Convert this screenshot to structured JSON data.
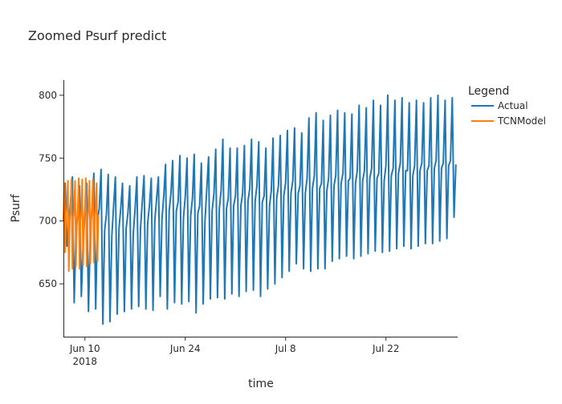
{
  "chart_data": {
    "type": "line",
    "title": "Zoomed Psurf predict",
    "xlabel": "time",
    "ylabel": "Psurf",
    "x_range": [
      "2018-06-07",
      "2018-08-01"
    ],
    "ylim": [
      608,
      812
    ],
    "grid": false,
    "legend": {
      "title": "Legend",
      "placement": "top-right-outside"
    },
    "x_ticks": [
      {
        "date": "2018-06-10",
        "label": "Jun 10",
        "sublabel": "2018"
      },
      {
        "date": "2018-06-24",
        "label": "Jun 24",
        "sublabel": ""
      },
      {
        "date": "2018-07-08",
        "label": "Jul 8",
        "sublabel": ""
      },
      {
        "date": "2018-07-22",
        "label": "Jul 22",
        "sublabel": ""
      }
    ],
    "y_ticks": [
      650,
      700,
      750,
      800
    ],
    "series": [
      {
        "name": "Actual",
        "color": "#1f77b4",
        "start": "2018-06-07",
        "end": "2018-08-01",
        "cycle_days": 1,
        "cycle_samples": 4,
        "daily_cycles": [
          [
            700,
            730,
            680,
            698
          ],
          [
            715,
            735,
            635,
            690
          ],
          [
            705,
            728,
            640,
            680
          ],
          [
            708,
            730,
            628,
            690
          ],
          [
            712,
            738,
            630,
            700
          ],
          [
            710,
            741,
            618,
            692
          ],
          [
            706,
            737,
            620,
            688
          ],
          [
            712,
            735,
            626,
            694
          ],
          [
            710,
            730,
            628,
            694
          ],
          [
            706,
            728,
            630,
            690
          ],
          [
            710,
            735,
            632,
            694
          ],
          [
            715,
            736,
            630,
            698
          ],
          [
            712,
            734,
            629,
            700
          ],
          [
            718,
            735,
            640,
            702
          ],
          [
            720,
            745,
            630,
            708
          ],
          [
            722,
            748,
            635,
            708
          ],
          [
            715,
            752,
            634,
            702
          ],
          [
            720,
            750,
            636,
            704
          ],
          [
            718,
            753,
            627,
            706
          ],
          [
            712,
            746,
            634,
            700
          ],
          [
            725,
            751,
            638,
            708
          ],
          [
            722,
            757,
            639,
            710
          ],
          [
            724,
            765,
            638,
            710
          ],
          [
            718,
            758,
            642,
            712
          ],
          [
            720,
            758,
            640,
            712
          ],
          [
            722,
            760,
            644,
            716
          ],
          [
            726,
            765,
            645,
            716
          ],
          [
            728,
            763,
            640,
            715
          ],
          [
            720,
            758,
            646,
            712
          ],
          [
            724,
            766,
            650,
            718
          ],
          [
            728,
            768,
            655,
            720
          ],
          [
            730,
            772,
            660,
            722
          ],
          [
            732,
            774,
            666,
            722
          ],
          [
            728,
            770,
            662,
            722
          ],
          [
            734,
            782,
            660,
            726
          ],
          [
            736,
            786,
            662,
            726
          ],
          [
            730,
            780,
            662,
            724
          ],
          [
            734,
            784,
            668,
            728
          ],
          [
            736,
            788,
            670,
            730
          ],
          [
            738,
            786,
            672,
            732
          ],
          [
            734,
            785,
            670,
            730
          ],
          [
            740,
            792,
            672,
            732
          ],
          [
            740,
            790,
            674,
            734
          ],
          [
            742,
            796,
            676,
            734
          ],
          [
            738,
            792,
            675,
            732
          ],
          [
            744,
            800,
            676,
            736
          ],
          [
            742,
            796,
            678,
            738
          ],
          [
            746,
            798,
            680,
            740
          ],
          [
            740,
            794,
            678,
            736
          ],
          [
            744,
            796,
            680,
            740
          ],
          [
            746,
            794,
            682,
            740
          ],
          [
            744,
            798,
            682,
            742
          ],
          [
            748,
            800,
            684,
            742
          ],
          [
            746,
            796,
            686,
            744
          ],
          [
            748,
            798,
            703,
            745
          ]
        ]
      },
      {
        "name": "TCNModel",
        "color": "#ff7f0e",
        "start": "2018-06-07",
        "end": "2018-06-12",
        "cycle_days": 0.5,
        "cycle_samples": 4,
        "daily_cycles": [
          [
            700,
            730,
            675,
            705
          ],
          [
            712,
            732,
            660,
            700
          ],
          [
            710,
            733,
            662,
            702
          ],
          [
            708,
            732,
            664,
            698
          ],
          [
            710,
            734,
            662,
            700
          ],
          [
            708,
            733,
            665,
            700
          ],
          [
            712,
            734,
            664,
            702
          ],
          [
            710,
            732,
            666,
            702
          ],
          [
            712,
            733,
            667,
            704
          ],
          [
            710,
            730,
            668,
            705
          ]
        ]
      }
    ]
  }
}
